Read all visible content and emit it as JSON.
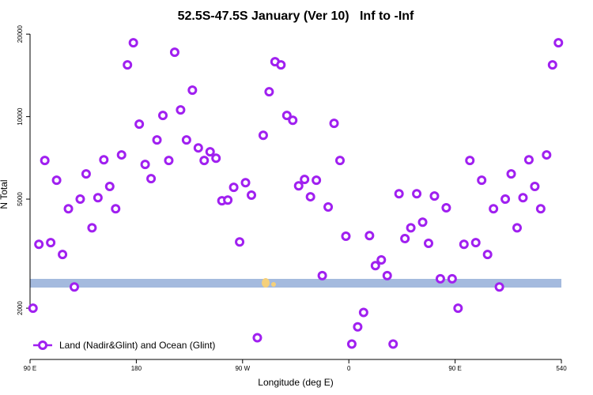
{
  "chart_data": {
    "type": "scatter",
    "title": "52.5S-47.5S January (Ver 10)   Inf to -Inf",
    "x_label": "Longitude (deg E)",
    "y_label": "N Total",
    "log_y": true,
    "legend": "bottom-left",
    "xlim": [
      90,
      540
    ],
    "ylim": [
      1300,
      20700
    ],
    "xticks": [
      {
        "value": 90,
        "label": "90 E"
      },
      180,
      {
        "value": 270,
        "label": "90 W"
      },
      {
        "value": 360,
        "label": "0"
      },
      {
        "value": 450,
        "label": "90 E"
      },
      540
    ],
    "yticks": [
      2000,
      5000,
      10000,
      20000
    ],
    "series": [
      {
        "name": "Land (Nadir&Glint) and Ocean (Glint)",
        "color": "#a020f0",
        "x": [
          92.5,
          97.5,
          102.5,
          107.5,
          112.5,
          117.5,
          122.5,
          127.5,
          132.5,
          137.5,
          142.5,
          147.5,
          152.5,
          157.5,
          162.5,
          167.5,
          172.5,
          177.5,
          182.5,
          187.5,
          192.5,
          197.5,
          202.5,
          207.5,
          212.5,
          217.5,
          222.5,
          227.5,
          232.5,
          237.5,
          242.5,
          247.5,
          252.5,
          257.5,
          262.5,
          267.5,
          272.5,
          277.5,
          282.5,
          287.5,
          292.5,
          297.5,
          302.5,
          307.5,
          312.5,
          317.5,
          322.5,
          327.5,
          332.5,
          337.5,
          342.5,
          347.5,
          352.5,
          357.5,
          362.5,
          367.5,
          372.5,
          377.5,
          382.5,
          387.5,
          392.5,
          397.5,
          402.5,
          407.5,
          412.5,
          417.5,
          422.5,
          427.5,
          432.5,
          437.5,
          442.5,
          447.5,
          452.5,
          457.5,
          462.5,
          467.5,
          472.5,
          477.5,
          482.5,
          487.5,
          492.5,
          497.5,
          502.5,
          507.5,
          512.5,
          517.5,
          522.5,
          527.5,
          532.5,
          537.5
        ],
        "values": [
          2000,
          3420,
          6920,
          3470,
          5860,
          3140,
          4610,
          2390,
          5000,
          6180,
          3930,
          5060,
          6960,
          5560,
          4610,
          7250,
          15440,
          18600,
          9390,
          6690,
          5940,
          8220,
          10100,
          6920,
          17170,
          10580,
          8220,
          12490,
          7690,
          6920,
          7440,
          7050,
          4930,
          4960,
          5520,
          3490,
          5740,
          5170,
          1560,
          8550,
          12320,
          15860,
          15440,
          10100,
          9700,
          5590,
          5900,
          5100,
          5860,
          2630,
          4680,
          9450,
          6920,
          3660,
          1480,
          1710,
          1930,
          3680,
          2860,
          3000,
          2630,
          1480,
          5230,
          3590,
          3930,
          5230,
          4120,
          3450,
          5130,
          2560,
          4650,
          2560,
          2000,
          3420,
          6920,
          3470,
          5860,
          3140,
          4610,
          2390,
          5000,
          6180,
          3930,
          5060,
          6960,
          5560,
          4610,
          7250,
          15440,
          18600
        ]
      }
    ]
  }
}
